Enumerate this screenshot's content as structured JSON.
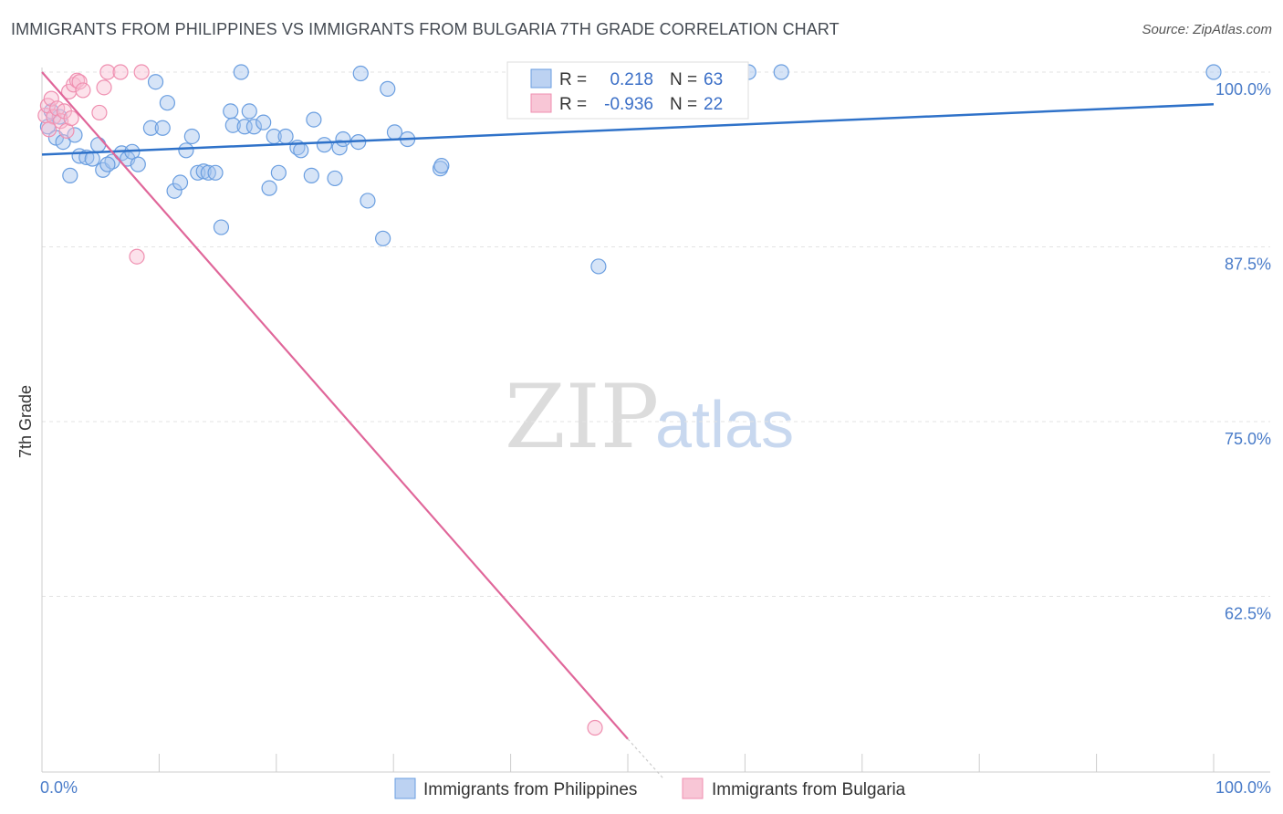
{
  "title": "IMMIGRANTS FROM PHILIPPINES VS IMMIGRANTS FROM BULGARIA 7TH GRADE CORRELATION CHART",
  "source": "Source: ZipAtlas.com",
  "watermark": {
    "zip": "ZIP",
    "atlas": "atlas"
  },
  "legend_top": {
    "rows": [
      {
        "r_label": "R =",
        "r_value": "0.218",
        "n_label": "N =",
        "n_value": "63"
      },
      {
        "r_label": "R =",
        "r_value": "-0.936",
        "n_label": "N =",
        "n_value": "22"
      }
    ]
  },
  "chart_data": {
    "type": "scatter",
    "title": "IMMIGRANTS FROM PHILIPPINES VS IMMIGRANTS FROM BULGARIA 7TH GRADE CORRELATION CHART",
    "xlabel": "",
    "ylabel": "7th Grade",
    "xlim": [
      0,
      100
    ],
    "ylim": [
      49.5,
      100.5
    ],
    "x_tick_labels": {
      "left": "0.0%",
      "right": "100.0%"
    },
    "y_ticks": [
      {
        "value": 100,
        "label": "100.0%"
      },
      {
        "value": 87.5,
        "label": "87.5%"
      },
      {
        "value": 75,
        "label": "75.0%"
      },
      {
        "value": 62.5,
        "label": "62.5%"
      }
    ],
    "colors": {
      "philippines": "#6a9ee0",
      "bulgaria": "#ef8fb0",
      "philippines_line": "#2f72c9",
      "bulgaria_line": "#e0679a"
    },
    "series": [
      {
        "name": "Immigrants from Philippines",
        "color": "#6a9ee0",
        "trend": {
          "x0": 0,
          "y0": 94.1,
          "x1": 100,
          "y1": 97.7
        },
        "points": [
          [
            0.5,
            96.1
          ],
          [
            1.2,
            95.3
          ],
          [
            1.8,
            95.0
          ],
          [
            2.4,
            92.6
          ],
          [
            2.8,
            95.5
          ],
          [
            3.2,
            94.0
          ],
          [
            3.8,
            93.9
          ],
          [
            4.3,
            93.8
          ],
          [
            4.8,
            94.8
          ],
          [
            5.2,
            93.0
          ],
          [
            6.0,
            93.6
          ],
          [
            6.8,
            94.2
          ],
          [
            7.3,
            93.8
          ],
          [
            7.7,
            94.3
          ],
          [
            8.2,
            93.4
          ],
          [
            9.3,
            96.0
          ],
          [
            9.7,
            99.3
          ],
          [
            10.3,
            96.0
          ],
          [
            10.7,
            97.8
          ],
          [
            11.3,
            91.5
          ],
          [
            11.8,
            92.1
          ],
          [
            12.3,
            94.4
          ],
          [
            12.8,
            95.4
          ],
          [
            13.3,
            92.8
          ],
          [
            13.8,
            92.9
          ],
          [
            14.2,
            92.8
          ],
          [
            14.8,
            92.8
          ],
          [
            15.3,
            88.9
          ],
          [
            16.1,
            97.2
          ],
          [
            16.3,
            96.2
          ],
          [
            17.0,
            100.0
          ],
          [
            17.3,
            96.1
          ],
          [
            17.7,
            97.2
          ],
          [
            18.1,
            96.1
          ],
          [
            18.9,
            96.4
          ],
          [
            19.4,
            91.7
          ],
          [
            19.8,
            95.4
          ],
          [
            20.2,
            92.8
          ],
          [
            20.8,
            95.4
          ],
          [
            21.8,
            94.6
          ],
          [
            22.1,
            94.4
          ],
          [
            23.0,
            92.6
          ],
          [
            23.2,
            96.6
          ],
          [
            24.1,
            94.8
          ],
          [
            25.0,
            92.4
          ],
          [
            25.4,
            94.6
          ],
          [
            25.7,
            95.2
          ],
          [
            27.0,
            95.0
          ],
          [
            27.2,
            99.9
          ],
          [
            27.8,
            90.8
          ],
          [
            29.1,
            88.1
          ],
          [
            29.5,
            98.8
          ],
          [
            30.1,
            95.7
          ],
          [
            31.2,
            95.2
          ],
          [
            34.0,
            93.1
          ],
          [
            34.1,
            93.3
          ],
          [
            47.5,
            86.1
          ],
          [
            60.3,
            100.0
          ],
          [
            63.1,
            100.0
          ],
          [
            100.0,
            100.0
          ],
          [
            0.8,
            97.2
          ],
          [
            1.5,
            96.8
          ],
          [
            5.6,
            93.4
          ]
        ]
      },
      {
        "name": "Immigrants from Bulgaria",
        "color": "#ef8fb0",
        "trend": {
          "x0": 0,
          "y0": 100.0,
          "x1": 50,
          "y1": 52.3
        },
        "trend_dash_to": {
          "x": 53,
          "y": 49.5
        },
        "points": [
          [
            0.3,
            96.9
          ],
          [
            0.5,
            97.6
          ],
          [
            0.8,
            98.1
          ],
          [
            1.0,
            96.8
          ],
          [
            1.3,
            97.4
          ],
          [
            1.6,
            96.5
          ],
          [
            1.9,
            97.2
          ],
          [
            2.1,
            95.8
          ],
          [
            2.3,
            98.6
          ],
          [
            2.5,
            96.7
          ],
          [
            2.7,
            99.1
          ],
          [
            3.0,
            99.4
          ],
          [
            3.2,
            99.3
          ],
          [
            3.5,
            98.7
          ],
          [
            4.9,
            97.1
          ],
          [
            5.3,
            98.9
          ],
          [
            5.6,
            100.0
          ],
          [
            6.7,
            100.0
          ],
          [
            8.5,
            100.0
          ],
          [
            8.1,
            86.8
          ],
          [
            47.2,
            53.1
          ],
          [
            0.6,
            95.9
          ]
        ]
      }
    ],
    "legend": [
      "Immigrants from Philippines",
      "Immigrants from Bulgaria"
    ]
  }
}
